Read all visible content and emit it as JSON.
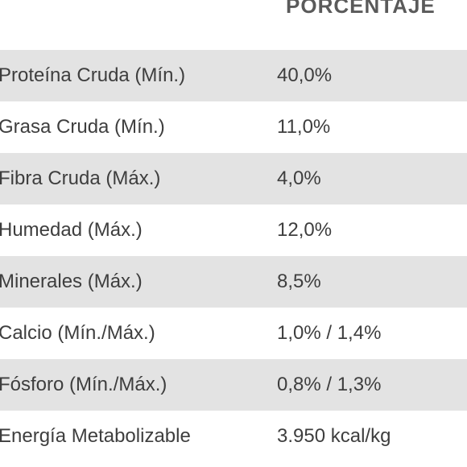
{
  "header": {
    "column_label": "PORCENTAJE"
  },
  "rows": [
    {
      "name": "Proteína Cruda (Mín.)",
      "value": "40,0%"
    },
    {
      "name": "Grasa Cruda (Mín.)",
      "value": "11,0%"
    },
    {
      "name": "Fibra Cruda (Máx.)",
      "value": "4,0%"
    },
    {
      "name": "Humedad (Máx.)",
      "value": "12,0%"
    },
    {
      "name": "Minerales (Máx.)",
      "value": "8,5%"
    },
    {
      "name": "Calcio (Mín./Máx.)",
      "value": "1,0% / 1,4%"
    },
    {
      "name": "Fósforo (Mín./Máx.)",
      "value": "0,8% / 1,3%"
    },
    {
      "name": "Energía Metabolizable",
      "value": "3.950 kcal/kg"
    }
  ]
}
